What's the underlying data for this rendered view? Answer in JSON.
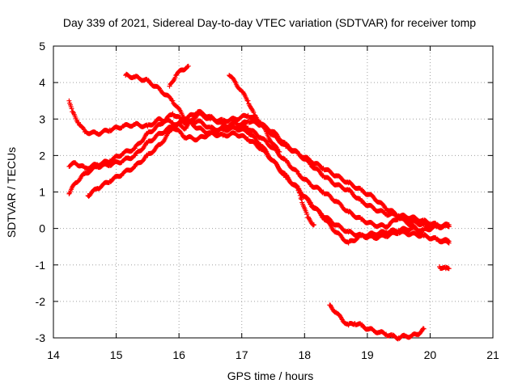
{
  "chart_data": {
    "type": "scatter",
    "title": "Day 339 of 2021, Sidereal Day-to-day VTEC variation (SDTVAR) for receiver tomp",
    "xlabel": "GPS time / hours",
    "ylabel": "SDTVAR / TECUs",
    "xlim": [
      14,
      21
    ],
    "ylim": [
      -3,
      5
    ],
    "xticks": [
      "14",
      "15",
      "16",
      "17",
      "18",
      "19",
      "20",
      "21"
    ],
    "yticks": [
      "-3",
      "-2",
      "-1",
      "0",
      "1",
      "2",
      "3",
      "4",
      "5"
    ],
    "grid": true,
    "marker": "+",
    "color": "#ff0000",
    "series": [
      {
        "name": "track-1",
        "x": [
          14.25,
          14.3,
          14.4,
          14.5,
          14.7,
          14.9,
          15.1,
          15.3,
          15.5,
          15.7,
          15.9,
          16.1,
          16.3,
          16.5,
          16.7,
          16.9,
          17.1,
          17.3,
          17.5,
          17.7,
          17.9,
          18.1,
          18.3,
          18.5,
          18.7,
          18.9,
          19.1,
          19.3,
          19.5,
          19.7,
          19.9,
          20.1,
          20.3
        ],
        "y": [
          3.5,
          3.2,
          2.9,
          2.65,
          2.6,
          2.7,
          2.8,
          2.85,
          2.8,
          3.0,
          2.9,
          2.75,
          3.15,
          3.0,
          2.95,
          3.0,
          3.1,
          2.9,
          2.55,
          2.25,
          2.05,
          1.85,
          1.65,
          1.45,
          1.25,
          1.05,
          0.85,
          0.55,
          0.35,
          0.3,
          0.2,
          0.1,
          0.05
        ]
      },
      {
        "name": "track-2",
        "x": [
          14.25,
          14.35,
          14.5,
          14.7,
          14.9,
          15.1,
          15.3,
          15.5,
          15.7,
          15.9,
          16.1,
          16.3,
          16.5,
          16.7,
          16.9,
          17.1,
          17.3,
          17.5,
          17.7,
          17.9,
          18.1,
          18.3,
          18.5,
          18.7,
          18.9,
          19.1,
          19.3,
          19.5,
          19.7,
          19.9,
          20.1,
          20.3
        ],
        "y": [
          1.7,
          1.8,
          1.65,
          1.75,
          1.85,
          2.05,
          2.2,
          2.6,
          2.85,
          3.15,
          2.9,
          2.95,
          2.75,
          2.7,
          2.75,
          2.95,
          2.85,
          2.65,
          2.3,
          2.05,
          1.75,
          1.45,
          1.2,
          1.05,
          0.75,
          0.55,
          0.4,
          0.35,
          0.2,
          0.1,
          0.05,
          0.1
        ]
      },
      {
        "name": "track-3",
        "x": [
          14.25,
          14.35,
          14.5,
          14.7,
          14.9,
          15.1,
          15.3,
          15.5,
          15.7,
          15.9,
          16.1,
          16.3,
          16.5,
          16.7,
          16.9,
          17.1,
          17.3,
          17.5,
          17.7,
          17.9,
          18.1,
          18.3,
          18.5,
          18.7,
          18.9,
          19.1,
          19.3,
          19.5,
          19.7,
          19.9,
          20.1,
          20.3
        ],
        "y": [
          0.95,
          1.25,
          1.5,
          1.7,
          1.75,
          1.85,
          2.0,
          2.35,
          2.6,
          2.8,
          2.5,
          2.45,
          2.6,
          2.75,
          2.9,
          2.75,
          2.5,
          2.2,
          1.85,
          1.5,
          1.2,
          1.0,
          0.75,
          0.45,
          0.25,
          0.1,
          0.05,
          0.3,
          0.1,
          -0.2,
          -0.3,
          -0.35
        ]
      },
      {
        "name": "track-4",
        "x": [
          14.55,
          14.7,
          14.9,
          15.1,
          15.3,
          15.5,
          15.7,
          15.9,
          16.1,
          16.3,
          16.5,
          16.7,
          16.9,
          17.1,
          17.3,
          17.5,
          17.7,
          17.9,
          18.1,
          18.3,
          18.5,
          18.7,
          18.9,
          19.1,
          19.3,
          19.5,
          19.7,
          19.9,
          20.1,
          20.3
        ],
        "y": [
          0.9,
          1.1,
          1.3,
          1.5,
          1.7,
          2.0,
          2.3,
          2.75,
          3.0,
          3.2,
          3.05,
          2.85,
          2.75,
          2.65,
          2.3,
          1.85,
          1.45,
          1.05,
          0.7,
          0.3,
          -0.1,
          -0.4,
          -0.2,
          -0.15,
          -0.1,
          -0.05,
          0.0,
          -0.05,
          0.05,
          0.05
        ]
      },
      {
        "name": "track-5",
        "x": [
          15.15,
          15.3,
          15.5,
          15.7,
          15.9,
          16.1,
          16.3,
          16.5,
          16.7,
          16.9,
          17.1,
          17.3,
          17.5,
          17.7,
          17.9,
          18.1,
          18.3,
          18.5,
          18.7,
          18.9,
          19.1,
          19.3,
          19.5,
          19.7,
          19.9,
          20.1,
          20.3
        ],
        "y": [
          4.2,
          4.15,
          4.05,
          3.8,
          3.5,
          3.0,
          2.75,
          2.6,
          2.55,
          2.6,
          2.45,
          2.2,
          1.85,
          1.4,
          1.1,
          0.65,
          0.35,
          0.1,
          -0.1,
          -0.2,
          -0.25,
          -0.2,
          -0.1,
          -0.15,
          -0.2,
          -0.3,
          -0.4
        ]
      },
      {
        "name": "track-6",
        "x": [
          15.85,
          15.95,
          16.05,
          16.15
        ],
        "y": [
          3.9,
          4.2,
          4.35,
          4.45
        ]
      },
      {
        "name": "track-7",
        "x": [
          16.8,
          16.9,
          17.0,
          17.1,
          17.2,
          17.3,
          17.4,
          17.5,
          17.6
        ],
        "y": [
          4.2,
          4.0,
          3.75,
          3.5,
          3.1,
          2.9,
          2.6,
          2.3,
          2.1
        ]
      },
      {
        "name": "track-8",
        "x": [
          17.9,
          17.95,
          18.05,
          18.15
        ],
        "y": [
          1.1,
          0.8,
          0.3,
          0.1
        ]
      },
      {
        "name": "track-9",
        "x": [
          18.4,
          18.5,
          18.6,
          18.7,
          18.8,
          18.9,
          19.0,
          19.1,
          19.2,
          19.3,
          19.4,
          19.5,
          19.6,
          19.7,
          19.8,
          19.9
        ],
        "y": [
          -2.1,
          -2.3,
          -2.5,
          -2.65,
          -2.6,
          -2.65,
          -2.75,
          -2.8,
          -2.85,
          -2.9,
          -2.95,
          -3.0,
          -2.95,
          -2.95,
          -2.9,
          -2.75
        ]
      },
      {
        "name": "track-10",
        "x": [
          20.15,
          20.25,
          20.3
        ],
        "y": [
          -1.05,
          -1.1,
          -1.1
        ]
      }
    ]
  }
}
